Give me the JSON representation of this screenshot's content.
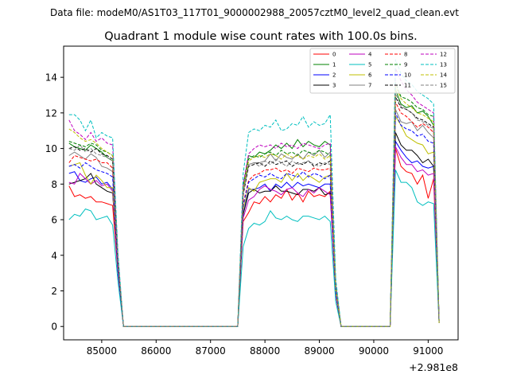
{
  "chart_data": {
    "type": "line",
    "suptitle": "Data file: modeM0/AS1T03_117T01_9000002988_20057cztM0_level2_quad_clean.evt",
    "title": "Quadrant 1 module wise count rates with 100.0s bins.",
    "xlabel": "",
    "ylabel": "",
    "x_offset_label": "+2.981e8",
    "xlim": [
      84300,
      91550
    ],
    "ylim": [
      -0.75,
      15.75
    ],
    "x_ticks": [
      85000,
      86000,
      87000,
      88000,
      89000,
      90000,
      91000
    ],
    "x_tick_labels": [
      "85000",
      "86000",
      "87000",
      "88000",
      "89000",
      "90000",
      "91000"
    ],
    "y_ticks": [
      0,
      2,
      4,
      6,
      8,
      10,
      12,
      14
    ],
    "y_tick_labels": [
      "0",
      "2",
      "4",
      "6",
      "8",
      "10",
      "12",
      "14"
    ],
    "legend_position": "top-right",
    "x": [
      84400,
      84500,
      84600,
      84700,
      84800,
      84900,
      85000,
      85100,
      85200,
      85300,
      85400,
      85500,
      85600,
      85700,
      85800,
      85900,
      86000,
      86100,
      86200,
      86300,
      86400,
      86500,
      86600,
      86700,
      86800,
      86900,
      87000,
      87100,
      87200,
      87300,
      87400,
      87500,
      87600,
      87700,
      87800,
      87900,
      88000,
      88100,
      88200,
      88300,
      88400,
      88500,
      88600,
      88700,
      88800,
      88900,
      89000,
      89100,
      89200,
      89300,
      89400,
      89500,
      89600,
      89700,
      89800,
      89900,
      90000,
      90100,
      90200,
      90300,
      90400,
      90500,
      90600,
      90700,
      90800,
      90900,
      91000,
      91100,
      91200
    ],
    "series": [
      {
        "name": "0",
        "color": "#ff0000",
        "dash": "solid",
        "values": [
          7.9,
          7.3,
          7.4,
          7.2,
          7.3,
          7.0,
          7.0,
          6.9,
          6.8,
          3.0,
          0,
          0,
          0,
          0,
          0,
          0,
          0,
          0,
          0,
          0,
          0,
          0,
          0,
          0,
          0,
          0,
          0,
          0,
          0,
          0,
          0,
          0,
          5.9,
          6.4,
          7.0,
          6.9,
          7.3,
          7.0,
          7.4,
          7.2,
          7.7,
          7.1,
          7.5,
          7.0,
          7.6,
          7.3,
          7.4,
          7.3,
          7.6,
          1.8,
          0,
          0,
          0,
          0,
          0,
          0,
          0,
          0,
          0,
          0,
          10.0,
          9.0,
          8.7,
          8.6,
          8.0,
          8.5,
          7.2,
          8.3,
          0.2
        ]
      },
      {
        "name": "1",
        "color": "#008000",
        "dash": "solid",
        "values": [
          10.3,
          10.1,
          10.0,
          9.9,
          10.2,
          10.0,
          9.8,
          9.5,
          9.3,
          3.5,
          0,
          0,
          0,
          0,
          0,
          0,
          0,
          0,
          0,
          0,
          0,
          0,
          0,
          0,
          0,
          0,
          0,
          0,
          0,
          0,
          0,
          0,
          7.9,
          9.6,
          9.5,
          9.8,
          9.7,
          9.9,
          10.2,
          10.0,
          10.3,
          10.0,
          10.5,
          10.1,
          10.4,
          10.2,
          10.1,
          10.4,
          10.2,
          2.4,
          0,
          0,
          0,
          0,
          0,
          0,
          0,
          0,
          0,
          0,
          13.3,
          12.5,
          12.3,
          12.4,
          12.0,
          12.1,
          11.8,
          11.3,
          0.3
        ]
      },
      {
        "name": "2",
        "color": "#0000ff",
        "dash": "solid",
        "values": [
          8.6,
          8.7,
          8.2,
          8.1,
          8.3,
          8.4,
          8.0,
          8.1,
          7.7,
          3.2,
          0,
          0,
          0,
          0,
          0,
          0,
          0,
          0,
          0,
          0,
          0,
          0,
          0,
          0,
          0,
          0,
          0,
          0,
          0,
          0,
          0,
          0,
          6.3,
          7.7,
          7.7,
          7.8,
          8.0,
          7.6,
          8.0,
          7.8,
          8.1,
          7.8,
          8.1,
          7.9,
          8.0,
          7.9,
          7.8,
          8.0,
          8.0,
          1.9,
          0,
          0,
          0,
          0,
          0,
          0,
          0,
          0,
          0,
          0,
          10.4,
          9.9,
          9.5,
          9.2,
          9.3,
          9.0,
          8.9,
          9.0,
          0.2
        ]
      },
      {
        "name": "3",
        "color": "#000000",
        "dash": "solid",
        "values": [
          8.0,
          8.1,
          8.2,
          8.3,
          8.6,
          8.0,
          7.8,
          7.6,
          7.5,
          3.1,
          0,
          0,
          0,
          0,
          0,
          0,
          0,
          0,
          0,
          0,
          0,
          0,
          0,
          0,
          0,
          0,
          0,
          0,
          0,
          0,
          0,
          0,
          6.3,
          7.5,
          7.7,
          7.5,
          7.6,
          7.6,
          7.9,
          7.6,
          7.6,
          7.5,
          7.4,
          7.7,
          7.7,
          7.6,
          7.8,
          7.4,
          7.5,
          1.8,
          0,
          0,
          0,
          0,
          0,
          0,
          0,
          0,
          0,
          0,
          10.9,
          10.2,
          9.9,
          9.9,
          9.6,
          9.2,
          9.4,
          9.0,
          0.2
        ]
      },
      {
        "name": "4",
        "color": "#bf00bf",
        "dash": "solid",
        "values": [
          8.1,
          8.0,
          8.6,
          8.3,
          8.0,
          8.2,
          7.9,
          8.0,
          7.6,
          3.0,
          0,
          0,
          0,
          0,
          0,
          0,
          0,
          0,
          0,
          0,
          0,
          0,
          0,
          0,
          0,
          0,
          0,
          0,
          0,
          0,
          0,
          0,
          6.1,
          7.1,
          7.3,
          7.7,
          7.9,
          7.7,
          7.6,
          7.4,
          7.7,
          7.8,
          7.5,
          7.3,
          7.7,
          7.5,
          7.8,
          7.6,
          7.4,
          1.8,
          0,
          0,
          0,
          0,
          0,
          0,
          0,
          0,
          0,
          0,
          10.1,
          9.5,
          9.1,
          9.1,
          8.7,
          8.8,
          8.5,
          8.6,
          0.2
        ]
      },
      {
        "name": "5",
        "color": "#00bfbf",
        "dash": "solid",
        "values": [
          6.0,
          6.3,
          6.2,
          6.6,
          6.5,
          6.0,
          6.1,
          6.2,
          5.7,
          2.5,
          0,
          0,
          0,
          0,
          0,
          0,
          0,
          0,
          0,
          0,
          0,
          0,
          0,
          0,
          0,
          0,
          0,
          0,
          0,
          0,
          0,
          0,
          4.5,
          5.5,
          5.8,
          5.7,
          5.9,
          6.5,
          6.1,
          6.0,
          6.2,
          6.0,
          5.9,
          6.2,
          6.2,
          6.1,
          6.0,
          6.2,
          5.9,
          1.4,
          0,
          0,
          0,
          0,
          0,
          0,
          0,
          0,
          0,
          0,
          8.8,
          8.1,
          8.1,
          7.8,
          7.0,
          6.8,
          7.0,
          6.9,
          0.2
        ]
      },
      {
        "name": "6",
        "color": "#bfbf00",
        "dash": "solid",
        "values": [
          9.0,
          9.1,
          9.2,
          8.5,
          8.0,
          8.5,
          8.2,
          7.8,
          7.8,
          3.4,
          0,
          0,
          0,
          0,
          0,
          0,
          0,
          0,
          0,
          0,
          0,
          0,
          0,
          0,
          0,
          0,
          0,
          0,
          0,
          0,
          0,
          0,
          6.6,
          7.8,
          7.6,
          8.1,
          8.2,
          8.3,
          8.3,
          8.1,
          8.6,
          8.2,
          8.6,
          8.2,
          8.5,
          8.3,
          8.1,
          8.4,
          8.5,
          2.0,
          0,
          0,
          0,
          0,
          0,
          0,
          0,
          0,
          0,
          0,
          11.8,
          11.3,
          10.7,
          10.5,
          10.3,
          10.2,
          9.7,
          9.8,
          0.2
        ]
      },
      {
        "name": "7",
        "color": "#808080",
        "dash": "solid",
        "values": [
          9.6,
          9.8,
          9.6,
          9.4,
          9.7,
          9.5,
          9.0,
          8.9,
          8.7,
          3.4,
          0,
          0,
          0,
          0,
          0,
          0,
          0,
          0,
          0,
          0,
          0,
          0,
          0,
          0,
          0,
          0,
          0,
          0,
          0,
          0,
          0,
          0,
          7.5,
          9.1,
          9.2,
          9.2,
          9.3,
          9.7,
          9.3,
          9.7,
          9.5,
          9.4,
          9.7,
          9.4,
          9.8,
          9.6,
          9.9,
          9.5,
          9.8,
          2.3,
          0,
          0,
          0,
          0,
          0,
          0,
          0,
          0,
          0,
          0,
          12.2,
          11.5,
          11.4,
          11.5,
          11.0,
          11.3,
          10.9,
          10.6,
          0.3
        ]
      },
      {
        "name": "8",
        "color": "#ff0000",
        "dash": "dashed",
        "values": [
          9.2,
          9.6,
          9.5,
          9.4,
          9.3,
          9.4,
          9.2,
          9.2,
          8.9,
          3.3,
          0,
          0,
          0,
          0,
          0,
          0,
          0,
          0,
          0,
          0,
          0,
          0,
          0,
          0,
          0,
          0,
          0,
          0,
          0,
          0,
          0,
          0,
          6.9,
          8.2,
          8.5,
          8.6,
          8.8,
          8.8,
          8.9,
          8.7,
          8.8,
          8.6,
          8.9,
          8.8,
          8.7,
          8.9,
          8.8,
          8.8,
          8.9,
          2.1,
          0,
          0,
          0,
          0,
          0,
          0,
          0,
          0,
          0,
          0,
          12.6,
          12.0,
          11.8,
          11.5,
          11.2,
          11.4,
          11.2,
          10.9,
          0.3
        ]
      },
      {
        "name": "9",
        "color": "#008000",
        "dash": "dashed",
        "values": [
          10.4,
          10.3,
          10.2,
          10.1,
          10.3,
          10.2,
          9.9,
          9.8,
          9.6,
          3.6,
          0,
          0,
          0,
          0,
          0,
          0,
          0,
          0,
          0,
          0,
          0,
          0,
          0,
          0,
          0,
          0,
          0,
          0,
          0,
          0,
          0,
          0,
          7.7,
          9.4,
          9.6,
          9.5,
          9.7,
          9.8,
          9.6,
          9.9,
          9.7,
          9.8,
          9.6,
          9.9,
          9.8,
          9.7,
          9.9,
          9.8,
          9.6,
          2.3,
          0,
          0,
          0,
          0,
          0,
          0,
          0,
          0,
          0,
          0,
          13.7,
          12.9,
          12.8,
          12.6,
          12.3,
          12.2,
          11.9,
          11.8,
          0.3
        ]
      },
      {
        "name": "10",
        "color": "#0000ff",
        "dash": "dashed",
        "values": [
          9.0,
          9.1,
          8.9,
          9.2,
          9.0,
          8.8,
          8.7,
          8.6,
          8.4,
          3.1,
          0,
          0,
          0,
          0,
          0,
          0,
          0,
          0,
          0,
          0,
          0,
          0,
          0,
          0,
          0,
          0,
          0,
          0,
          0,
          0,
          0,
          0,
          6.8,
          8.1,
          8.3,
          8.5,
          8.4,
          8.6,
          8.4,
          8.3,
          8.6,
          8.5,
          8.4,
          8.7,
          8.4,
          8.6,
          8.5,
          8.3,
          8.5,
          2.0,
          0,
          0,
          0,
          0,
          0,
          0,
          0,
          0,
          0,
          0,
          12.0,
          11.3,
          11.1,
          11.0,
          10.7,
          10.8,
          10.4,
          10.3,
          0.3
        ]
      },
      {
        "name": "11",
        "color": "#000000",
        "dash": "dashed",
        "values": [
          10.0,
          10.1,
          9.9,
          10.0,
          9.8,
          10.0,
          9.7,
          9.6,
          9.4,
          3.5,
          0,
          0,
          0,
          0,
          0,
          0,
          0,
          0,
          0,
          0,
          0,
          0,
          0,
          0,
          0,
          0,
          0,
          0,
          0,
          0,
          0,
          0,
          7.4,
          9.0,
          9.1,
          9.2,
          9.0,
          9.3,
          9.1,
          9.2,
          9.3,
          9.0,
          9.2,
          9.1,
          9.3,
          9.0,
          9.2,
          9.1,
          9.3,
          2.2,
          0,
          0,
          0,
          0,
          0,
          0,
          0,
          0,
          0,
          0,
          12.9,
          12.3,
          12.2,
          12.0,
          11.7,
          11.6,
          11.4,
          11.2,
          0.3
        ]
      },
      {
        "name": "12",
        "color": "#bf00bf",
        "dash": "dashed",
        "values": [
          11.6,
          11.0,
          10.8,
          10.5,
          10.9,
          10.4,
          10.6,
          10.3,
          10.2,
          3.9,
          0,
          0,
          0,
          0,
          0,
          0,
          0,
          0,
          0,
          0,
          0,
          0,
          0,
          0,
          0,
          0,
          0,
          0,
          0,
          0,
          0,
          0,
          8.0,
          9.7,
          10.0,
          10.2,
          10.1,
          10.2,
          10.0,
          10.3,
          10.1,
          10.2,
          10.0,
          10.3,
          10.2,
          10.1,
          10.0,
          10.2,
          10.3,
          2.4,
          0,
          0,
          0,
          0,
          0,
          0,
          0,
          0,
          0,
          0,
          14.5,
          13.8,
          13.3,
          13.0,
          12.6,
          12.4,
          12.2,
          12.0,
          0.3
        ]
      },
      {
        "name": "13",
        "color": "#00bfbf",
        "dash": "dashed",
        "values": [
          11.9,
          11.9,
          11.6,
          11.0,
          11.6,
          10.6,
          10.9,
          10.7,
          10.6,
          4.1,
          0,
          0,
          0,
          0,
          0,
          0,
          0,
          0,
          0,
          0,
          0,
          0,
          0,
          0,
          0,
          0,
          0,
          0,
          0,
          0,
          0,
          0,
          8.6,
          10.9,
          11.1,
          11.0,
          11.3,
          11.2,
          11.6,
          11.0,
          11.1,
          11.4,
          11.3,
          11.8,
          11.2,
          11.5,
          11.3,
          11.4,
          11.9,
          2.7,
          0,
          0,
          0,
          0,
          0,
          0,
          0,
          0,
          0,
          0,
          15.0,
          14.2,
          13.8,
          13.6,
          13.2,
          13.0,
          12.8,
          12.5,
          0.3
        ]
      },
      {
        "name": "14",
        "color": "#bfbf00",
        "dash": "dashed",
        "values": [
          11.1,
          10.9,
          10.6,
          10.4,
          10.5,
          10.3,
          10.0,
          9.8,
          9.6,
          3.6,
          0,
          0,
          0,
          0,
          0,
          0,
          0,
          0,
          0,
          0,
          0,
          0,
          0,
          0,
          0,
          0,
          0,
          0,
          0,
          0,
          0,
          0,
          7.7,
          9.3,
          9.5,
          9.6,
          9.5,
          9.7,
          9.6,
          9.4,
          9.7,
          9.5,
          9.6,
          9.4,
          9.6,
          9.5,
          9.7,
          9.4,
          9.6,
          2.2,
          0,
          0,
          0,
          0,
          0,
          0,
          0,
          0,
          0,
          0,
          13.5,
          12.8,
          12.5,
          12.3,
          12.0,
          11.9,
          11.7,
          11.5,
          0.3
        ]
      },
      {
        "name": "15",
        "color": "#808080",
        "dash": "dashed",
        "values": [
          10.0,
          9.9,
          10.2,
          9.8,
          10.0,
          9.7,
          9.6,
          9.5,
          9.3,
          3.5,
          0,
          0,
          0,
          0,
          0,
          0,
          0,
          0,
          0,
          0,
          0,
          0,
          0,
          0,
          0,
          0,
          0,
          0,
          0,
          0,
          0,
          0,
          7.5,
          9.1,
          9.2,
          9.0,
          9.3,
          9.1,
          9.4,
          9.2,
          9.0,
          9.3,
          9.1,
          9.2,
          9.3,
          9.1,
          9.0,
          9.2,
          9.1,
          2.2,
          0,
          0,
          0,
          0,
          0,
          0,
          0,
          0,
          0,
          0,
          13.1,
          12.4,
          12.2,
          12.0,
          11.6,
          11.5,
          11.3,
          11.1,
          0.3
        ]
      }
    ]
  }
}
